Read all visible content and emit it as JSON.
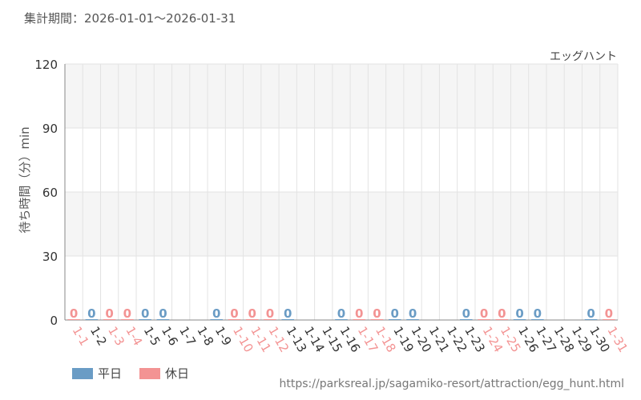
{
  "header": {
    "period": "集計期間：2026-01-01～2026-01-31"
  },
  "footer": {
    "source_url": "https://parksreal.jp/sagamiko-resort/attraction/egg_hunt.html"
  },
  "colors": {
    "weekday": "#6a9cc5",
    "holiday": "#f39393",
    "grid": "#e3e3e3",
    "band": "#f5f5f5",
    "axis_text": "#333333"
  },
  "legend": [
    {
      "label": "平日",
      "color": "#6a9cc5",
      "key": "weekday"
    },
    {
      "label": "休日",
      "color": "#f39393",
      "key": "holiday"
    }
  ],
  "chart_data": {
    "type": "bar",
    "title": "エッグハント",
    "xlabel": "",
    "ylabel": "待ち時間（分）min",
    "ylim": [
      0,
      120
    ],
    "yticks": [
      0,
      30,
      60,
      90,
      120
    ],
    "grid": true,
    "legend_position": "bottom-left",
    "categories": [
      "1-1",
      "1-2",
      "1-3",
      "1-4",
      "1-5",
      "1-6",
      "1-7",
      "1-8",
      "1-9",
      "1-10",
      "1-11",
      "1-12",
      "1-13",
      "1-14",
      "1-15",
      "1-16",
      "1-17",
      "1-18",
      "1-19",
      "1-20",
      "1-21",
      "1-22",
      "1-23",
      "1-24",
      "1-25",
      "1-26",
      "1-27",
      "1-28",
      "1-29",
      "1-30",
      "1-31"
    ],
    "day_type": [
      "holiday",
      "weekday",
      "holiday",
      "holiday",
      "weekday",
      "weekday",
      "none",
      "none",
      "weekday",
      "holiday",
      "holiday",
      "holiday",
      "weekday",
      "none",
      "none",
      "weekday",
      "holiday",
      "holiday",
      "weekday",
      "weekday",
      "none",
      "none",
      "weekday",
      "holiday",
      "holiday",
      "weekday",
      "weekday",
      "none",
      "none",
      "weekday",
      "holiday"
    ],
    "values": [
      0,
      0,
      0,
      0,
      0,
      0,
      null,
      null,
      0,
      0,
      0,
      0,
      0,
      null,
      null,
      0,
      0,
      0,
      0,
      0,
      null,
      null,
      0,
      0,
      0,
      0,
      0,
      null,
      null,
      0,
      0
    ]
  }
}
